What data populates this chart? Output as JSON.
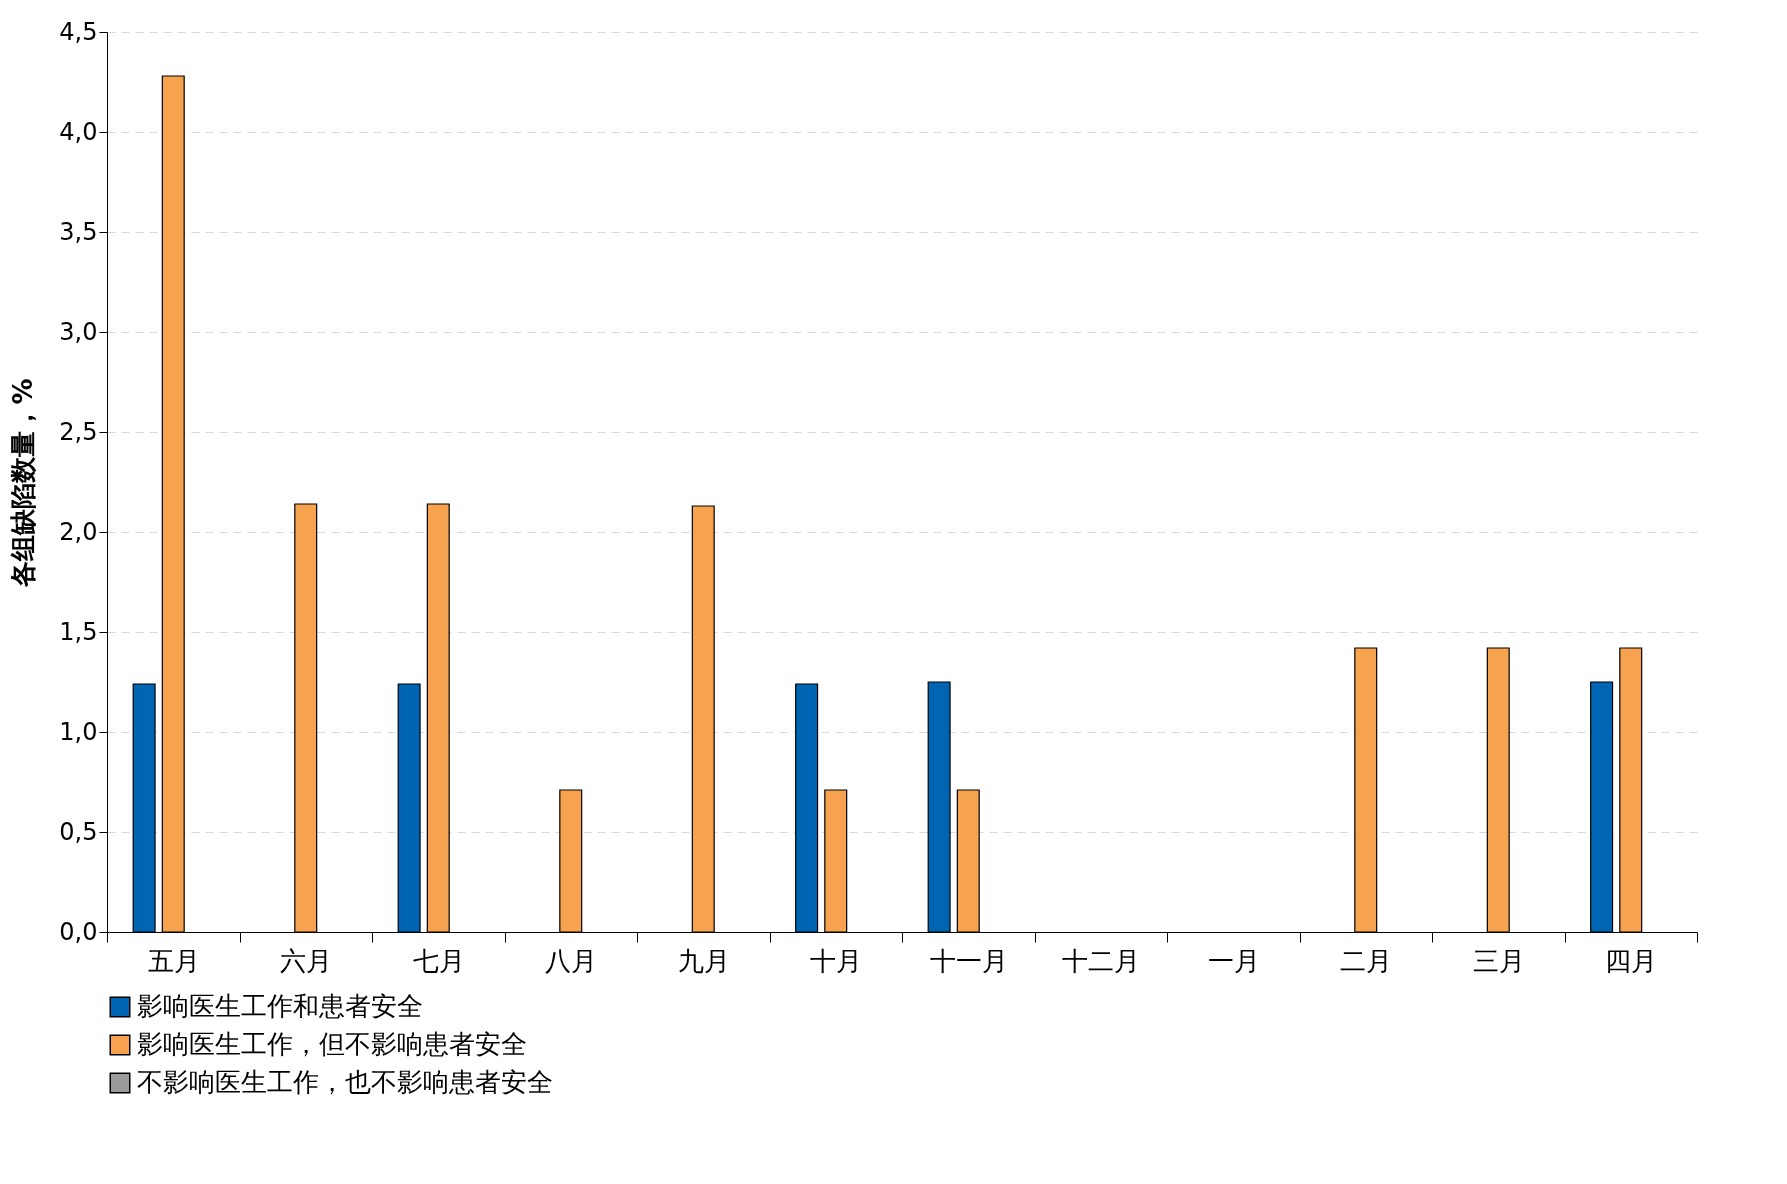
{
  "chart_data": {
    "type": "bar",
    "ylabel": "各组缺陷数量，%",
    "categories": [
      "五月",
      "六月",
      "七月",
      "八月",
      "九月",
      "十月",
      "十一月",
      "十二月",
      "一月",
      "二月",
      "三月",
      "四月"
    ],
    "series": [
      {
        "name": "影响医生工作和患者安全",
        "color": "#0066b3",
        "values": [
          1.24,
          null,
          1.24,
          null,
          null,
          1.24,
          1.25,
          null,
          null,
          null,
          null,
          1.25
        ]
      },
      {
        "name": "影响医生工作，但不影响患者安全",
        "color": "#f7a24f",
        "values": [
          4.28,
          2.14,
          2.14,
          0.71,
          2.13,
          0.71,
          0.71,
          null,
          null,
          1.42,
          1.42,
          1.42
        ]
      },
      {
        "name": "不影响医生工作，也不影响患者安全",
        "color": "#9a9a9a",
        "values": [
          null,
          null,
          null,
          null,
          null,
          null,
          null,
          null,
          null,
          null,
          null,
          null
        ]
      }
    ],
    "ylim": [
      0,
      4.5
    ],
    "yticks": [
      {
        "value": 0,
        "label": "0,0"
      },
      {
        "value": 0.5,
        "label": "0,5"
      },
      {
        "value": 1,
        "label": "1,0"
      },
      {
        "value": 1.5,
        "label": "1,5"
      },
      {
        "value": 2,
        "label": "2,0"
      },
      {
        "value": 2.5,
        "label": "2,5"
      },
      {
        "value": 3,
        "label": "3,0"
      },
      {
        "value": 3.5,
        "label": "3,5"
      },
      {
        "value": 4,
        "label": "4,0"
      },
      {
        "value": 4.5,
        "label": "4,5"
      }
    ],
    "grid": "y",
    "legend": "bottom"
  }
}
